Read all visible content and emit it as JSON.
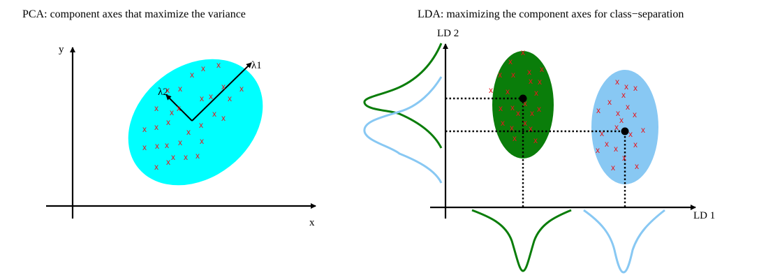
{
  "pca": {
    "title": "PCA: component axes that maximize the variance",
    "x_label": "x",
    "y_label": "y",
    "lambda1": "λ1",
    "lambda2": "λ2",
    "ellipse_color": "#00ffff",
    "point_marker": "x",
    "point_color": "#e8141b"
  },
  "lda": {
    "title": "LDA: maximizing the component axes for class−separation",
    "x_label": "LD 1",
    "y_label": "LD 2",
    "class1_color": "#0a7d0a",
    "class2_color": "#88c8f3",
    "point_marker": "x",
    "point_color": "#e8141b"
  }
}
